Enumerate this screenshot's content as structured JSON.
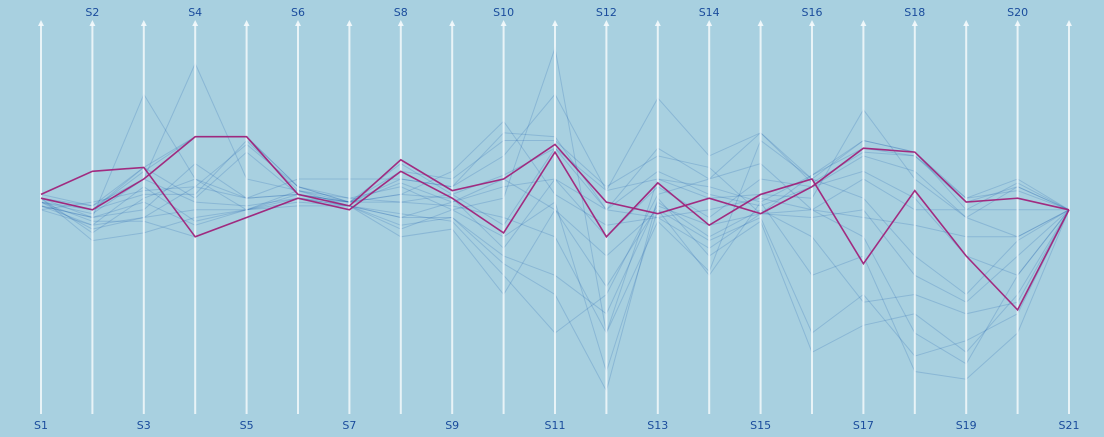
{
  "chart_data": {
    "type": "parallel-coordinates",
    "axes": [
      "S1",
      "S2",
      "S3",
      "S4",
      "S5",
      "S6",
      "S7",
      "S8",
      "S9",
      "S10",
      "S11",
      "S12",
      "S13",
      "S14",
      "S15",
      "S16",
      "S17",
      "S18",
      "S19",
      "S20",
      "S21"
    ],
    "axis_label_position": [
      "bottom",
      "top",
      "bottom",
      "top",
      "bottom",
      "top",
      "bottom",
      "top",
      "bottom",
      "top",
      "bottom",
      "top",
      "bottom",
      "top",
      "bottom",
      "top",
      "bottom",
      "top",
      "bottom",
      "top",
      "bottom"
    ],
    "value_range": [
      0,
      1
    ],
    "series": [
      {
        "kind": "highlighted",
        "values": [
          0.56,
          0.62,
          0.63,
          0.45,
          0.5,
          0.55,
          0.52,
          0.62,
          0.55,
          0.46,
          0.67,
          0.45,
          0.59,
          0.48,
          0.56,
          0.6,
          0.38,
          0.57,
          0.4,
          0.26,
          0.52
        ]
      },
      {
        "kind": "highlighted",
        "values": [
          0.55,
          0.52,
          0.6,
          0.71,
          0.71,
          0.56,
          0.53,
          0.65,
          0.57,
          0.6,
          0.69,
          0.54,
          0.51,
          0.55,
          0.51,
          0.58,
          0.68,
          0.67,
          0.54,
          0.55,
          0.52
        ]
      },
      {
        "values": [
          0.55,
          0.52,
          0.63,
          0.71,
          0.71,
          0.58,
          0.54,
          0.64,
          0.56,
          0.61,
          0.68,
          0.57,
          0.6,
          0.58,
          0.54,
          0.61,
          0.68,
          0.66,
          0.55,
          0.57,
          0.52
        ]
      },
      {
        "values": [
          0.54,
          0.52,
          0.62,
          0.71,
          0.71,
          0.58,
          0.54,
          0.59,
          0.54,
          0.58,
          0.6,
          0.52,
          0.68,
          0.6,
          0.72,
          0.59,
          0.67,
          0.66,
          0.54,
          0.58,
          0.52
        ]
      },
      {
        "values": [
          0.54,
          0.49,
          0.49,
          0.45,
          0.5,
          0.55,
          0.53,
          0.47,
          0.52,
          0.45,
          0.54,
          0.1,
          0.52,
          0.44,
          0.5,
          0.2,
          0.3,
          0.14,
          0.18,
          0.25,
          0.52
        ]
      },
      {
        "values": [
          0.55,
          0.44,
          0.46,
          0.5,
          0.52,
          0.53,
          0.53,
          0.48,
          0.5,
          0.38,
          0.3,
          0.05,
          0.55,
          0.4,
          0.49,
          0.15,
          0.22,
          0.25,
          0.15,
          0.3,
          0.52
        ]
      },
      {
        "values": [
          0.53,
          0.5,
          0.52,
          0.64,
          0.55,
          0.56,
          0.54,
          0.6,
          0.58,
          0.66,
          0.82,
          0.57,
          0.81,
          0.66,
          0.72,
          0.6,
          0.7,
          0.67,
          0.52,
          0.59,
          0.52
        ]
      },
      {
        "values": [
          0.52,
          0.54,
          0.57,
          0.58,
          0.69,
          0.58,
          0.55,
          0.54,
          0.53,
          0.5,
          0.45,
          0.2,
          0.49,
          0.36,
          0.7,
          0.6,
          0.55,
          0.4,
          0.3,
          0.44,
          0.52
        ]
      },
      {
        "values": [
          0.55,
          0.46,
          0.55,
          0.6,
          0.52,
          0.57,
          0.53,
          0.51,
          0.49,
          0.35,
          0.2,
          0.3,
          0.56,
          0.6,
          0.64,
          0.52,
          0.45,
          0.2,
          0.12,
          0.35,
          0.52
        ]
      },
      {
        "values": [
          0.56,
          0.53,
          0.63,
          0.55,
          0.67,
          0.56,
          0.54,
          0.62,
          0.6,
          0.7,
          0.7,
          0.58,
          0.66,
          0.63,
          0.51,
          0.61,
          0.7,
          0.67,
          0.55,
          0.6,
          0.52
        ]
      },
      {
        "values": [
          0.53,
          0.48,
          0.58,
          0.49,
          0.52,
          0.54,
          0.53,
          0.45,
          0.47,
          0.3,
          0.52,
          0.32,
          0.53,
          0.48,
          0.51,
          0.5,
          0.52,
          0.35,
          0.28,
          0.4,
          0.52
        ]
      },
      {
        "values": [
          0.54,
          0.51,
          0.6,
          0.9,
          0.6,
          0.57,
          0.55,
          0.58,
          0.52,
          0.55,
          0.94,
          0.2,
          0.6,
          0.55,
          0.56,
          0.55,
          0.78,
          0.6,
          0.5,
          0.45,
          0.52
        ]
      },
      {
        "values": [
          0.55,
          0.5,
          0.82,
          0.6,
          0.55,
          0.6,
          0.6,
          0.6,
          0.58,
          0.72,
          0.71,
          0.52,
          0.5,
          0.52,
          0.55,
          0.52,
          0.6,
          0.52,
          0.52,
          0.52,
          0.52
        ]
      },
      {
        "values": [
          0.52,
          0.48,
          0.5,
          0.52,
          0.52,
          0.55,
          0.53,
          0.5,
          0.54,
          0.6,
          0.52,
          0.4,
          0.52,
          0.35,
          0.54,
          0.35,
          0.4,
          0.1,
          0.08,
          0.2,
          0.52
        ]
      },
      {
        "values": [
          0.55,
          0.52,
          0.56,
          0.56,
          0.7,
          0.57,
          0.54,
          0.56,
          0.55,
          0.42,
          0.6,
          0.45,
          0.58,
          0.5,
          0.6,
          0.58,
          0.62,
          0.55,
          0.4,
          0.35,
          0.52
        ]
      },
      {
        "values": [
          0.55,
          0.53,
          0.6,
          0.54,
          0.53,
          0.55,
          0.54,
          0.54,
          0.56,
          0.48,
          0.68,
          0.52,
          0.62,
          0.56,
          0.53,
          0.58,
          0.66,
          0.62,
          0.5,
          0.58,
          0.52
        ]
      },
      {
        "values": [
          0.54,
          0.47,
          0.5,
          0.58,
          0.55,
          0.56,
          0.53,
          0.5,
          0.5,
          0.4,
          0.35,
          0.25,
          0.54,
          0.45,
          0.52,
          0.45,
          0.28,
          0.3,
          0.25,
          0.28,
          0.52
        ]
      },
      {
        "values": [
          0.53,
          0.5,
          0.54,
          0.48,
          0.52,
          0.56,
          0.54,
          0.56,
          0.62,
          0.75,
          0.56,
          0.48,
          0.5,
          0.42,
          0.51,
          0.52,
          0.5,
          0.48,
          0.45,
          0.45,
          0.52
        ]
      }
    ]
  }
}
